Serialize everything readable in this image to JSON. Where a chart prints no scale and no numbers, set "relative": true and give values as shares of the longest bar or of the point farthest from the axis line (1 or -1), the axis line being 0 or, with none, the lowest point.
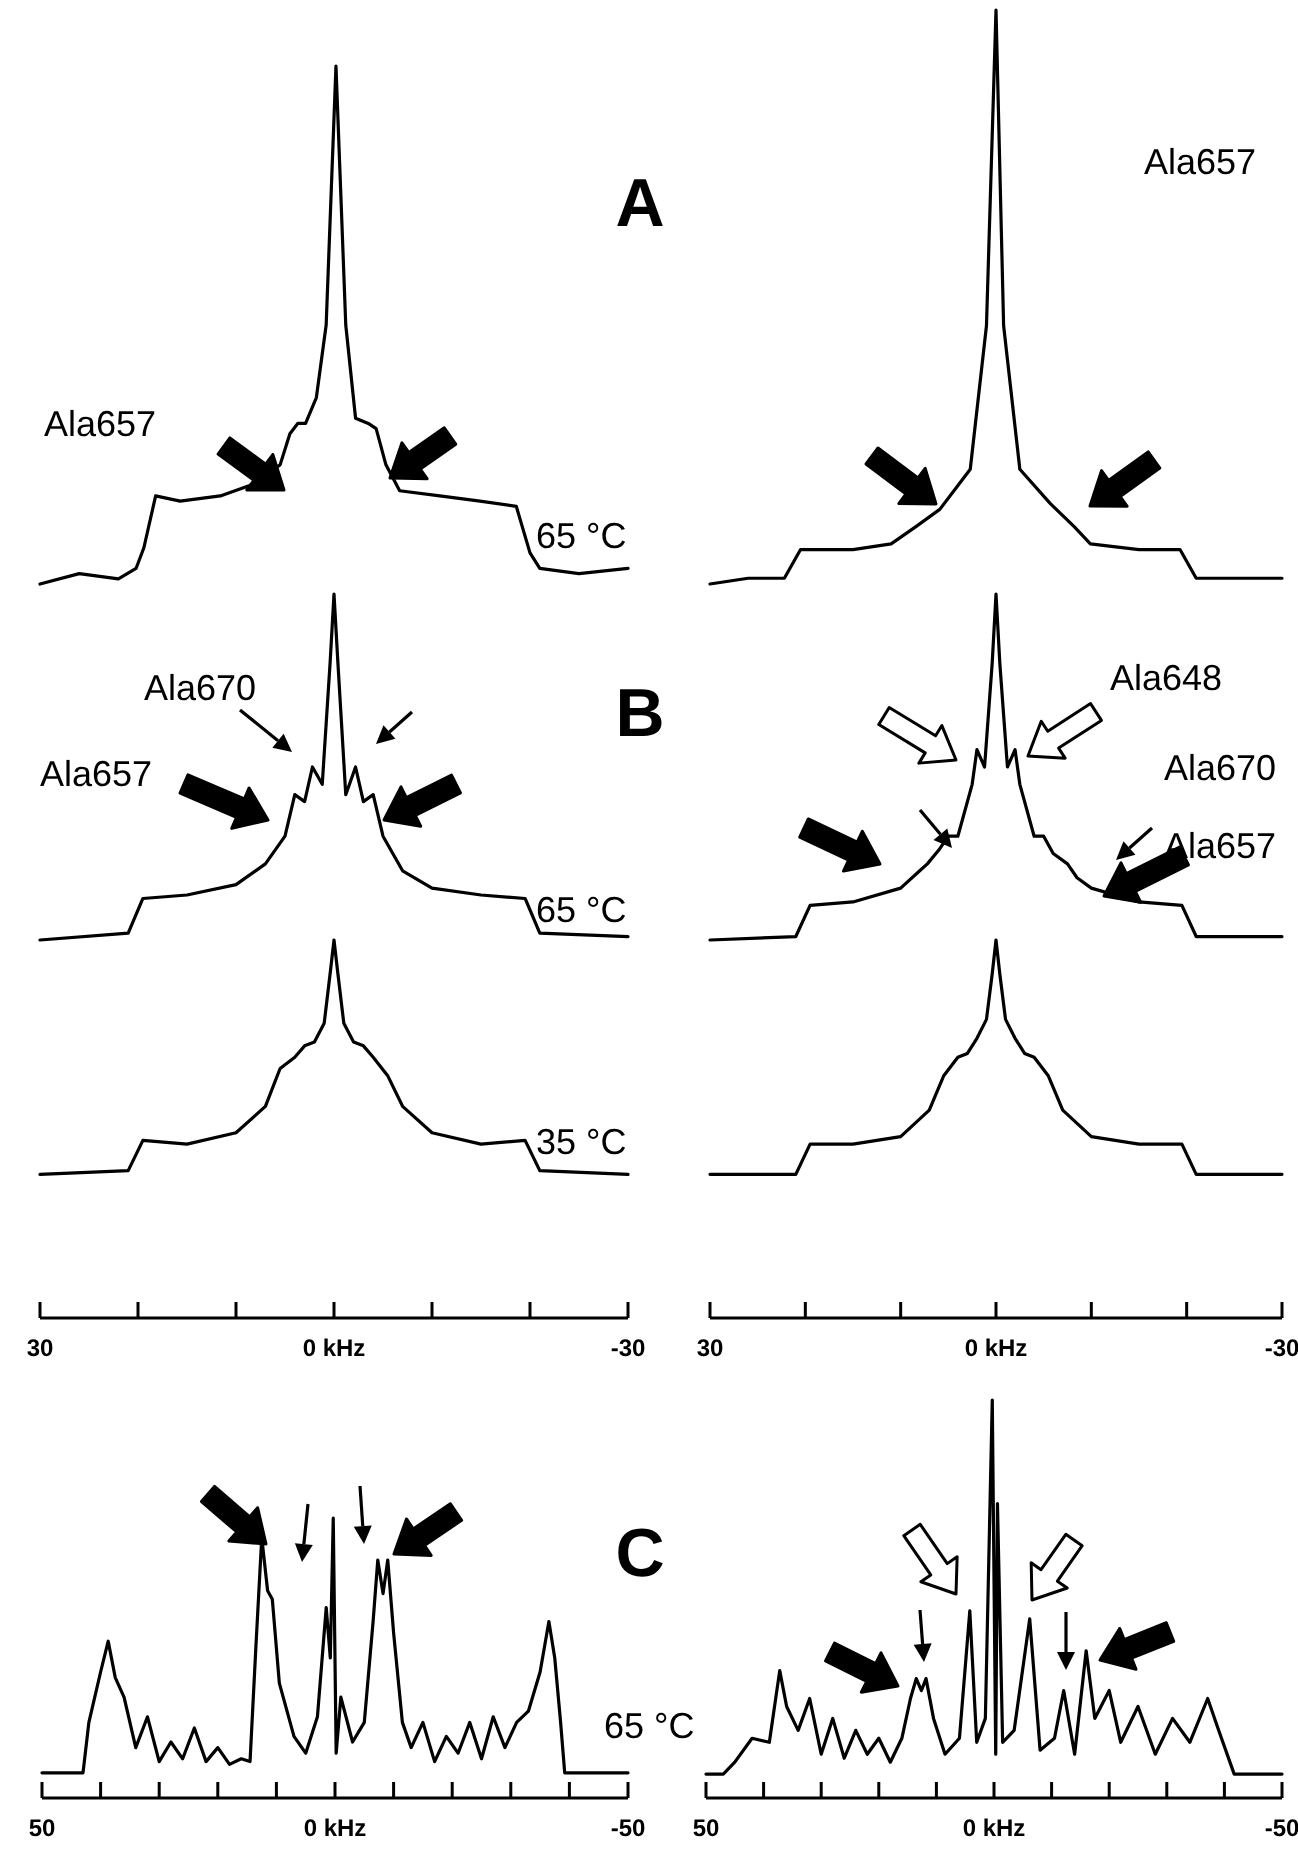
{
  "chart_data": [
    {
      "type": "line",
      "relative": true,
      "color": "#000000",
      "xlim": [
        30,
        -30
      ],
      "tick_labels": false,
      "annotations": [
        "Ala657",
        "A",
        "65 °C"
      ],
      "x": [
        30,
        26,
        22,
        20.2,
        19.4,
        18.2,
        15.7,
        11.6,
        8.6,
        5.5,
        4.5,
        3.7,
        2.9,
        1.8,
        0.8,
        0.2,
        -0.2,
        -0.6,
        -1.2,
        -2.2,
        -3.5,
        -4.3,
        -5.3,
        -6.7,
        -10.8,
        -14.9,
        -18.6,
        -20,
        -21,
        -25,
        -30
      ],
      "values": [
        0,
        0.02,
        0.01,
        0.03,
        0.07,
        0.17,
        0.16,
        0.17,
        0.19,
        0.23,
        0.29,
        0.31,
        0.31,
        0.36,
        0.5,
        0.8,
        1,
        0.8,
        0.5,
        0.32,
        0.31,
        0.3,
        0.23,
        0.18,
        0.17,
        0.16,
        0.15,
        0.06,
        0.03,
        0.02,
        0.03
      ]
    },
    {
      "type": "line",
      "relative": true,
      "color": "#000000",
      "xlim": [
        30,
        -30
      ],
      "tick_labels": false,
      "annotations": [
        "Ala657"
      ],
      "x": [
        30,
        26,
        22.2,
        20.5,
        15,
        11,
        8.4,
        5.9,
        2.7,
        1,
        0,
        -0.8,
        -2.5,
        -5.7,
        -8.2,
        -9.9,
        -15,
        -19.3,
        -21,
        -25,
        -30
      ],
      "values": [
        0,
        0.01,
        0.01,
        0.06,
        0.06,
        0.07,
        0.1,
        0.13,
        0.2,
        0.45,
        1,
        0.45,
        0.2,
        0.14,
        0.1,
        0.07,
        0.06,
        0.06,
        0.01,
        0.01,
        0.01
      ]
    },
    {
      "type": "line",
      "relative": true,
      "color": "#000000",
      "xlim": [
        30,
        -30
      ],
      "tick_labels": false,
      "annotations": [
        "Ala670",
        "Ala657",
        "B",
        "65 °C"
      ],
      "x": [
        30,
        21,
        19.5,
        15,
        10,
        7,
        5,
        4,
        3,
        2.2,
        1.2,
        0.4,
        0,
        -0.4,
        -1.2,
        -2.2,
        -3,
        -4,
        -5,
        -7,
        -10,
        -15,
        -19.5,
        -21,
        -30
      ],
      "values": [
        0,
        0.02,
        0.12,
        0.13,
        0.16,
        0.22,
        0.3,
        0.42,
        0.4,
        0.5,
        0.45,
        0.8,
        1,
        0.8,
        0.42,
        0.5,
        0.4,
        0.42,
        0.3,
        0.2,
        0.15,
        0.13,
        0.12,
        0.02,
        0.01
      ]
    },
    {
      "type": "line",
      "relative": true,
      "color": "#000000",
      "xlim": [
        30,
        -30
      ],
      "tick_labels": false,
      "annotations": [
        "Ala648",
        "Ala670",
        "Ala657"
      ],
      "x": [
        30,
        21,
        19.5,
        15,
        10,
        8,
        7.2,
        6,
        5,
        4,
        2.5,
        2,
        1.2,
        0.4,
        0,
        -0.4,
        -1.2,
        -2,
        -2.5,
        -4,
        -5,
        -6,
        -7.5,
        -8.5,
        -10,
        -15,
        -19.5,
        -21,
        -30
      ],
      "values": [
        0,
        0.01,
        0.1,
        0.11,
        0.15,
        0.2,
        0.22,
        0.26,
        0.3,
        0.3,
        0.45,
        0.55,
        0.5,
        0.8,
        1,
        0.8,
        0.5,
        0.55,
        0.45,
        0.3,
        0.3,
        0.25,
        0.22,
        0.18,
        0.15,
        0.11,
        0.1,
        0.01,
        0.01
      ]
    },
    {
      "type": "line",
      "relative": true,
      "color": "#000000",
      "xlim": [
        30,
        -30
      ],
      "tick_labels": "x",
      "annotations": [
        "35 °C"
      ],
      "xticks": [
        30,
        {
          "value": 20,
          "label": null
        },
        {
          "value": 10,
          "label": null
        },
        {
          "value": 0,
          "label": "0 kHz"
        },
        {
          "value": -10,
          "label": null
        },
        {
          "value": -20,
          "label": null
        },
        -30
      ],
      "x": [
        30,
        21,
        19.5,
        15,
        10,
        7,
        5.5,
        4,
        3,
        2,
        1,
        0.4,
        0,
        -0.4,
        -1,
        -2,
        -3,
        -4,
        -5.5,
        -7,
        -10,
        -15,
        -19.5,
        -21,
        -30
      ],
      "values": [
        0.38,
        0.39,
        0.47,
        0.46,
        0.49,
        0.56,
        0.66,
        0.69,
        0.72,
        0.73,
        0.78,
        0.91,
        1,
        0.91,
        0.78,
        0.73,
        0.72,
        0.69,
        0.64,
        0.56,
        0.49,
        0.46,
        0.47,
        0.39,
        0.38
      ]
    },
    {
      "type": "line",
      "relative": true,
      "color": "#000000",
      "xlim": [
        30,
        -30
      ],
      "tick_labels": "x",
      "xticks": [
        30,
        {
          "value": 20,
          "label": null
        },
        {
          "value": 10,
          "label": null
        },
        {
          "value": 0,
          "label": "0 kHz"
        },
        {
          "value": -10,
          "label": null
        },
        {
          "value": -20,
          "label": null
        },
        -30
      ],
      "x": [
        30,
        21,
        19.5,
        15,
        10,
        7,
        5.5,
        4,
        3,
        2,
        1,
        0.4,
        0,
        -0.4,
        -1,
        -2,
        -3,
        -4,
        -5.5,
        -7,
        -10,
        -15,
        -19.5,
        -21,
        -30
      ],
      "values": [
        0.38,
        0.38,
        0.46,
        0.46,
        0.48,
        0.55,
        0.64,
        0.69,
        0.7,
        0.74,
        0.79,
        0.91,
        1,
        0.91,
        0.79,
        0.74,
        0.7,
        0.69,
        0.64,
        0.55,
        0.48,
        0.46,
        0.46,
        0.38,
        0.38
      ]
    },
    {
      "type": "line",
      "relative": true,
      "color": "#000000",
      "xlim": [
        50,
        -50
      ],
      "tick_labels": "x",
      "annotations": [
        "C",
        "65 °C"
      ],
      "xticks": [
        50,
        {
          "value": 40,
          "label": null
        },
        {
          "value": 30,
          "label": null
        },
        {
          "value": 20,
          "label": null
        },
        {
          "value": 10,
          "label": null
        },
        {
          "value": 0,
          "label": "0 kHz"
        },
        {
          "value": -10,
          "label": null
        },
        {
          "value": -20,
          "label": null
        },
        {
          "value": -30,
          "label": null
        },
        {
          "value": -40,
          "label": null
        },
        -50
      ],
      "x": [
        50,
        43,
        42,
        40,
        38.7,
        37.5,
        36,
        34,
        32,
        30,
        28,
        26,
        24,
        22,
        20,
        18,
        16,
        14.5,
        13.5,
        12.5,
        11.5,
        10.7,
        9.5,
        7,
        5,
        3,
        1.5,
        0.8,
        0.3,
        -0.2,
        -1,
        -3,
        -5,
        -6.5,
        -7.3,
        -8.2,
        -9,
        -10,
        -11.5,
        -13,
        -15,
        -17,
        -19,
        -21,
        -23,
        -25,
        -27,
        -29,
        -31,
        -33,
        -35,
        -36.5,
        -37.5,
        -38.5,
        -39.2,
        -50
      ],
      "values": [
        0.09,
        0.09,
        0.27,
        0.45,
        0.56,
        0.43,
        0.36,
        0.18,
        0.29,
        0.13,
        0.2,
        0.14,
        0.25,
        0.13,
        0.18,
        0.12,
        0.14,
        0.13,
        0.54,
        0.93,
        0.74,
        0.71,
        0.41,
        0.22,
        0.16,
        0.29,
        0.68,
        0.5,
        1,
        0.16,
        0.36,
        0.2,
        0.27,
        0.63,
        0.85,
        0.73,
        0.85,
        0.59,
        0.27,
        0.18,
        0.27,
        0.13,
        0.22,
        0.16,
        0.27,
        0.14,
        0.29,
        0.18,
        0.27,
        0.31,
        0.45,
        0.63,
        0.5,
        0.27,
        0.09,
        0.09
      ]
    },
    {
      "type": "line",
      "relative": true,
      "color": "#000000",
      "xlim": [
        50,
        -50
      ],
      "tick_labels": "x",
      "xticks": [
        50,
        {
          "value": 40,
          "label": null
        },
        {
          "value": 30,
          "label": null
        },
        {
          "value": 20,
          "label": null
        },
        {
          "value": 10,
          "label": null
        },
        {
          "value": 0,
          "label": "0 kHz"
        },
        {
          "value": -10,
          "label": null
        },
        {
          "value": -20,
          "label": null
        },
        {
          "value": -30,
          "label": null
        },
        {
          "value": -40,
          "label": null
        },
        -50
      ],
      "x": [
        50,
        47,
        45,
        42,
        39,
        37.2,
        36,
        34,
        32,
        30,
        28,
        26,
        24,
        22,
        20,
        18,
        16,
        14.5,
        13.5,
        12.6,
        11.8,
        10.5,
        8.5,
        6,
        4.2,
        3,
        1.5,
        0.3,
        -0.3,
        -0.6,
        -1.5,
        -3.5,
        -6.2,
        -8,
        -10.5,
        -12.1,
        -14,
        -16,
        -17.5,
        -20,
        -22,
        -25,
        -28,
        -31,
        -34,
        -37.1,
        -39,
        -41.7,
        -50
      ],
      "values": [
        0.06,
        0.06,
        0.09,
        0.15,
        0.14,
        0.32,
        0.23,
        0.17,
        0.25,
        0.11,
        0.2,
        0.1,
        0.17,
        0.11,
        0.15,
        0.09,
        0.15,
        0.25,
        0.3,
        0.27,
        0.3,
        0.2,
        0.11,
        0.15,
        0.47,
        0.14,
        0.2,
        1,
        0.11,
        0.74,
        0.14,
        0.17,
        0.45,
        0.12,
        0.15,
        0.27,
        0.11,
        0.37,
        0.2,
        0.27,
        0.14,
        0.23,
        0.11,
        0.2,
        0.14,
        0.25,
        0.17,
        0.06,
        0.06
      ]
    }
  ]
}
